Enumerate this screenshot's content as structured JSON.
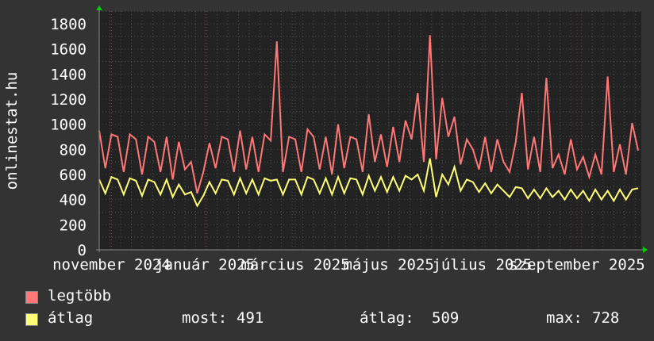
{
  "chart_data": {
    "type": "line",
    "ylabel": "onlinestat.hu",
    "ylim": [
      0,
      1900
    ],
    "yticks": [
      0,
      200,
      400,
      600,
      800,
      1000,
      1200,
      1400,
      1600,
      1800
    ],
    "xlim": [
      "2024-10-24",
      "2025-10-13"
    ],
    "xtick_labels": [
      "november 2024",
      "január 2025",
      "március 2025",
      "május 2025",
      "július 2025",
      "szeptember 2025"
    ],
    "xtick_dates": [
      "2024-11-01",
      "2025-01-01",
      "2025-03-01",
      "2025-05-01",
      "2025-07-01",
      "2025-09-01"
    ],
    "grid": true,
    "x": [
      "2024-10-24",
      "2024-10-28",
      "2024-11-01",
      "2024-11-05",
      "2024-11-09",
      "2024-11-13",
      "2024-11-17",
      "2024-11-21",
      "2024-11-25",
      "2024-11-29",
      "2024-12-03",
      "2024-12-07",
      "2024-12-11",
      "2024-12-15",
      "2024-12-19",
      "2024-12-23",
      "2024-12-27",
      "2024-12-31",
      "2025-01-04",
      "2025-01-08",
      "2025-01-12",
      "2025-01-16",
      "2025-01-20",
      "2025-01-24",
      "2025-01-28",
      "2025-02-01",
      "2025-02-05",
      "2025-02-09",
      "2025-02-13",
      "2025-02-17",
      "2025-02-21",
      "2025-02-25",
      "2025-03-01",
      "2025-03-05",
      "2025-03-09",
      "2025-03-13",
      "2025-03-17",
      "2025-03-21",
      "2025-03-25",
      "2025-03-29",
      "2025-04-02",
      "2025-04-06",
      "2025-04-10",
      "2025-04-14",
      "2025-04-18",
      "2025-04-22",
      "2025-04-26",
      "2025-04-30",
      "2025-05-04",
      "2025-05-08",
      "2025-05-12",
      "2025-05-16",
      "2025-05-20",
      "2025-05-24",
      "2025-05-28",
      "2025-06-01",
      "2025-06-05",
      "2025-06-09",
      "2025-06-13",
      "2025-06-17",
      "2025-06-21",
      "2025-06-25",
      "2025-06-29",
      "2025-07-03",
      "2025-07-07",
      "2025-07-11",
      "2025-07-15",
      "2025-07-19",
      "2025-07-23",
      "2025-07-27",
      "2025-07-31",
      "2025-08-04",
      "2025-08-08",
      "2025-08-12",
      "2025-08-16",
      "2025-08-20",
      "2025-08-24",
      "2025-08-28",
      "2025-09-01",
      "2025-09-05",
      "2025-09-09",
      "2025-09-13",
      "2025-09-17",
      "2025-09-21",
      "2025-09-25",
      "2025-09-29",
      "2025-10-03",
      "2025-10-07",
      "2025-10-11"
    ],
    "series": [
      {
        "name": "legtöbb",
        "color": "#ff7777",
        "values": [
          950,
          650,
          920,
          900,
          620,
          920,
          880,
          600,
          900,
          860,
          620,
          900,
          560,
          860,
          640,
          700,
          450,
          620,
          850,
          650,
          900,
          880,
          620,
          950,
          640,
          900,
          620,
          920,
          870,
          1660,
          620,
          900,
          880,
          620,
          960,
          900,
          640,
          900,
          600,
          1000,
          650,
          900,
          880,
          620,
          1080,
          700,
          920,
          660,
          980,
          700,
          1030,
          880,
          1250,
          700,
          1710,
          720,
          1210,
          900,
          1060,
          680,
          880,
          800,
          640,
          900,
          620,
          880,
          700,
          620,
          860,
          1250,
          640,
          900,
          620,
          1370,
          650,
          760,
          600,
          880,
          640,
          740,
          580,
          760,
          600,
          1380,
          620,
          840,
          600,
          1010,
          790
        ]
      },
      {
        "name": "átlag",
        "color": "#ffff77",
        "values": [
          560,
          450,
          580,
          560,
          440,
          570,
          550,
          430,
          560,
          540,
          440,
          560,
          420,
          520,
          440,
          460,
          350,
          430,
          540,
          450,
          560,
          550,
          440,
          570,
          450,
          560,
          440,
          570,
          550,
          560,
          440,
          560,
          560,
          440,
          580,
          560,
          450,
          570,
          440,
          580,
          450,
          570,
          560,
          440,
          590,
          470,
          580,
          460,
          580,
          470,
          590,
          560,
          600,
          470,
          728,
          420,
          600,
          520,
          660,
          470,
          560,
          540,
          460,
          530,
          450,
          520,
          470,
          420,
          500,
          490,
          410,
          480,
          410,
          490,
          420,
          470,
          400,
          480,
          410,
          470,
          390,
          480,
          400,
          470,
          390,
          480,
          400,
          480,
          491
        ]
      }
    ],
    "legend": {
      "placement": "bottom",
      "max_label": "legtöbb",
      "avg_label": "átlag",
      "stats": {
        "most_label": "most:",
        "most": "491",
        "atlag_label": "átlag:",
        "atlag": "509",
        "max_label": "max:",
        "max": "728"
      }
    }
  }
}
